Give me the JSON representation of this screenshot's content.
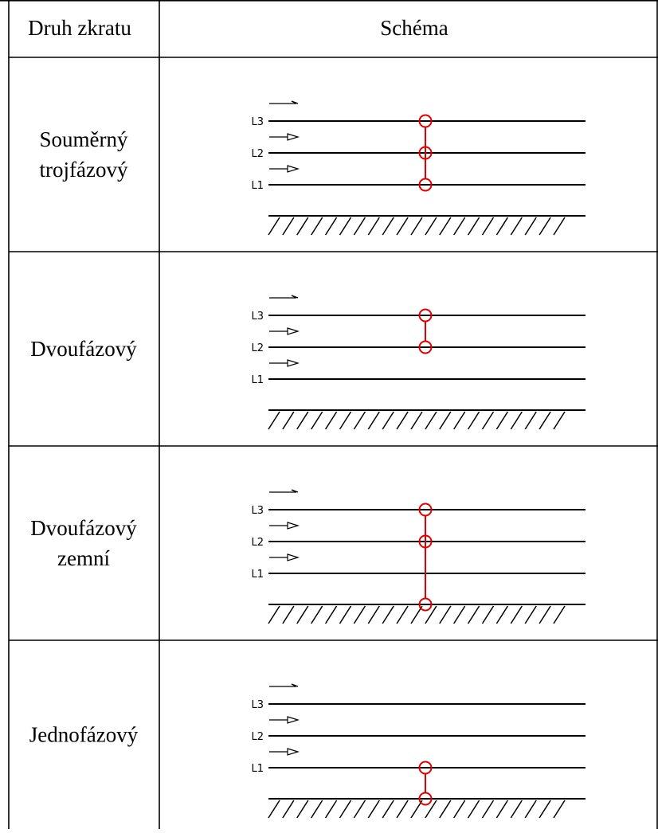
{
  "table": {
    "headers": [
      "Druh zkratu",
      "Schéma"
    ],
    "rows": [
      {
        "kind_lines": [
          "Souměrný",
          "trojfázový"
        ],
        "faulted": [
          "L3",
          "L2",
          "L1"
        ],
        "ground_fault": false
      },
      {
        "kind_lines": [
          "Dvoufázový"
        ],
        "faulted": [
          "L3",
          "L2"
        ],
        "ground_fault": false
      },
      {
        "kind_lines": [
          "Dvoufázový",
          "zemní"
        ],
        "faulted": [
          "L3",
          "L2"
        ],
        "ground_fault": true
      },
      {
        "kind_lines": [
          "Jednofázový"
        ],
        "faulted": [
          "L1"
        ],
        "ground_fault": true
      }
    ]
  },
  "phase_labels": [
    "L3",
    "L2",
    "L1"
  ],
  "colors": {
    "grid": "#000000",
    "line": "#000000",
    "fault": "#e00000",
    "text": "#000000"
  }
}
